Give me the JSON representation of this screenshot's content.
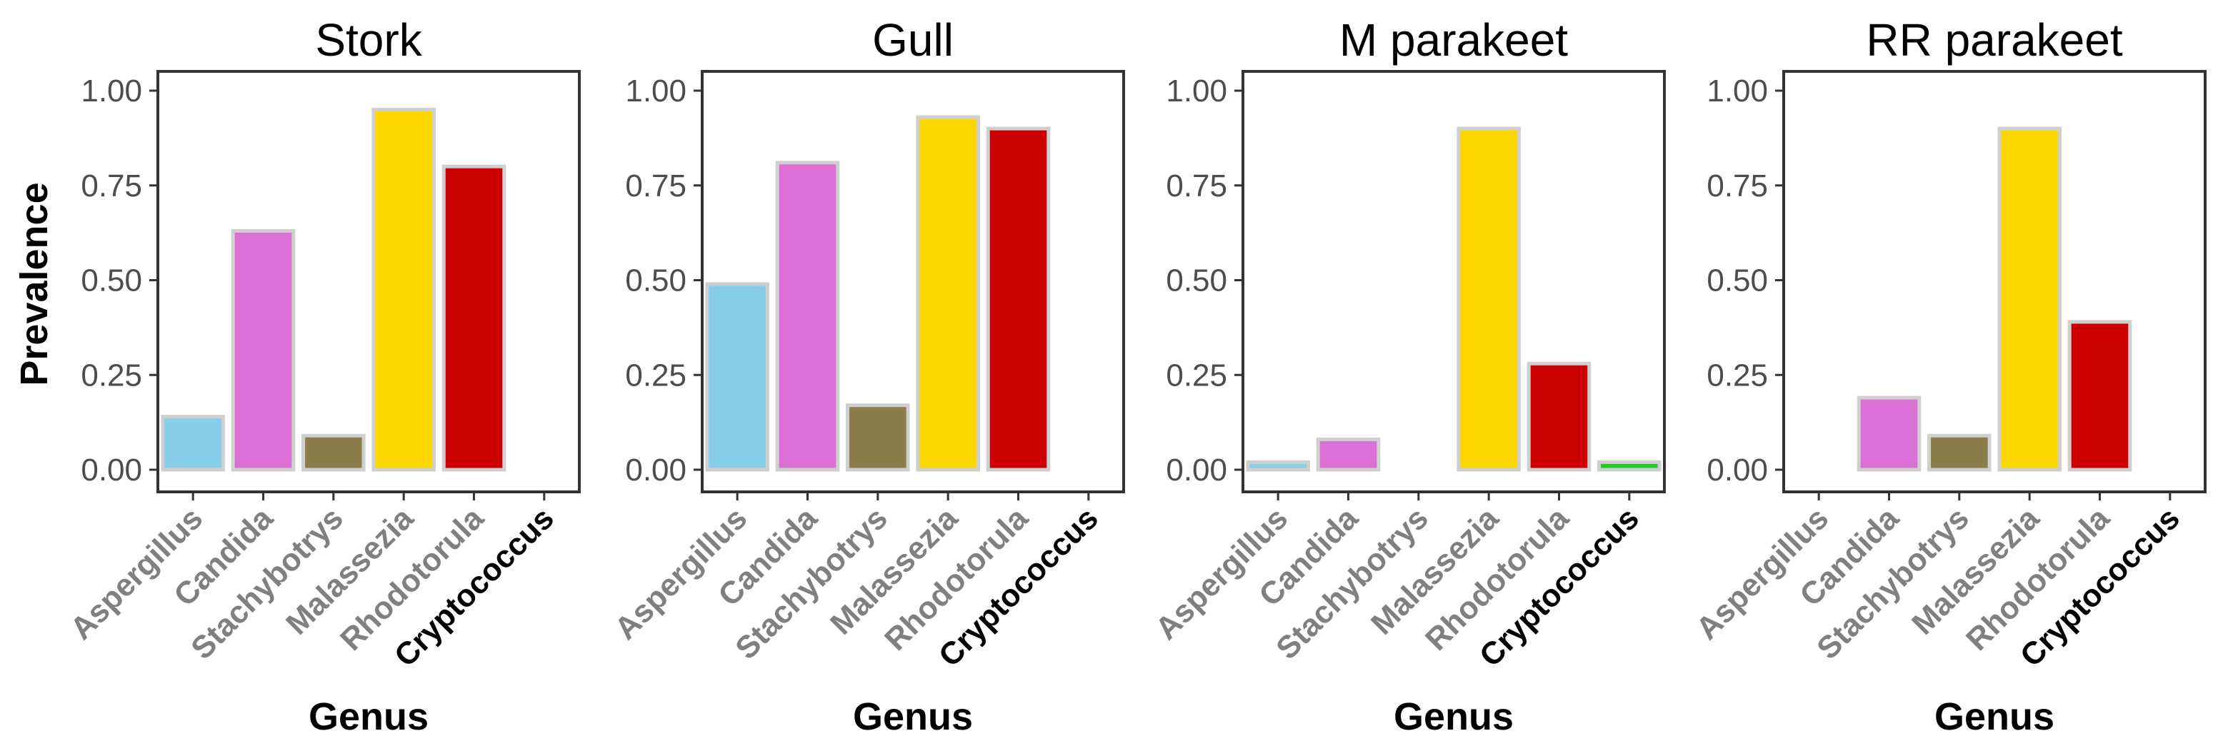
{
  "chart_data": {
    "type": "bar",
    "ylabel": "Prevalence",
    "xlabel": "Genus",
    "ylim": [
      0,
      1.05
    ],
    "yticks": [
      "0.00",
      "0.25",
      "0.50",
      "0.75",
      "1.00"
    ],
    "categories": [
      "Aspergillus",
      "Candida",
      "Stachybotrys",
      "Malassezia",
      "Rhodotorula",
      "Cryptococcus"
    ],
    "category_colors": [
      "#87CEEB",
      "#DA70D6",
      "#8B7D4A",
      "#FFD700",
      "#CC0000",
      "#22CC22"
    ],
    "category_label_colors": [
      "#808080",
      "#808080",
      "#808080",
      "#808080",
      "#808080",
      "#000000"
    ],
    "bar_outline_color": "#cfcfcf",
    "panels": [
      {
        "title": "Stork",
        "values": [
          0.14,
          0.63,
          0.09,
          0.95,
          0.8,
          0.0
        ]
      },
      {
        "title": "Gull",
        "values": [
          0.49,
          0.81,
          0.17,
          0.93,
          0.9,
          0.0
        ]
      },
      {
        "title": "M parakeet",
        "values": [
          0.02,
          0.08,
          0.0,
          0.9,
          0.28,
          0.02
        ]
      },
      {
        "title": "RR parakeet",
        "values": [
          0.0,
          0.19,
          0.09,
          0.9,
          0.39,
          0.0
        ]
      }
    ]
  }
}
